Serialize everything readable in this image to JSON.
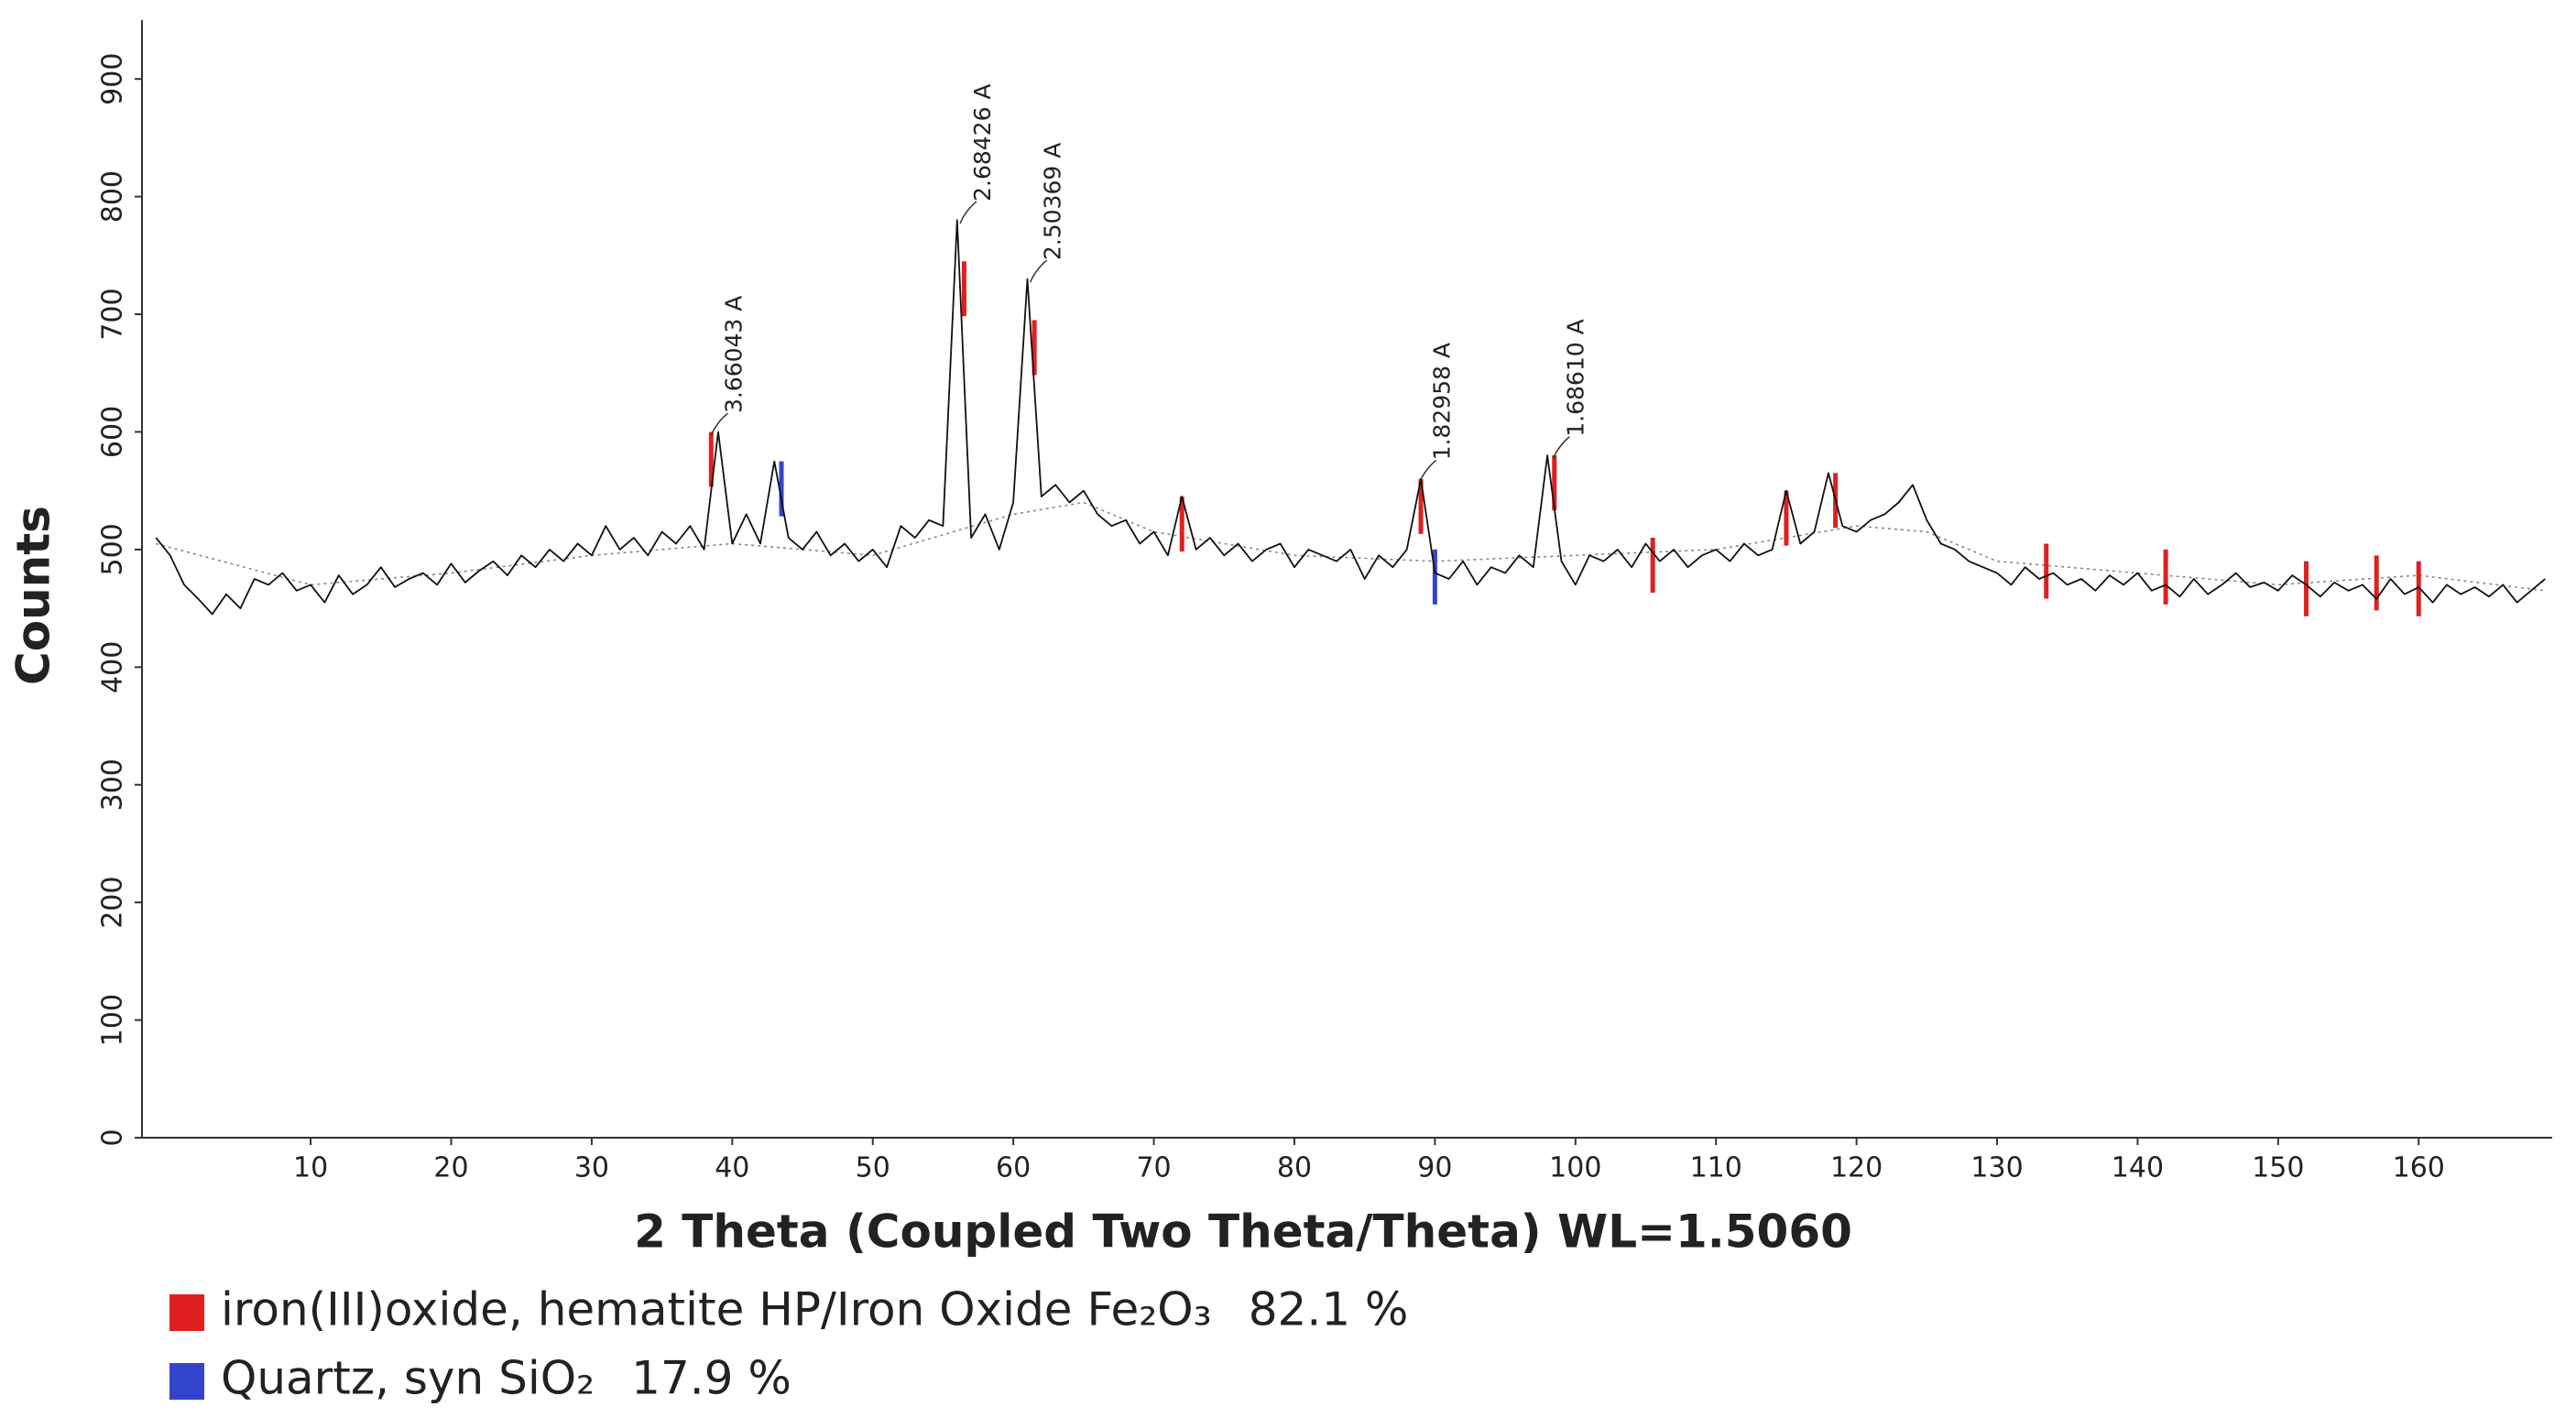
{
  "chart_data": {
    "type": "line",
    "xlabel": "2 Theta (Coupled Two Theta/Theta) WL=1.5060",
    "ylabel": "Counts",
    "xlim": [
      -2,
      169.5
    ],
    "ylim": [
      0,
      950
    ],
    "xticks": [
      10,
      20,
      30,
      40,
      50,
      60,
      70,
      80,
      90,
      100,
      110,
      120,
      130,
      140,
      150,
      160
    ],
    "yticks": [
      0,
      100,
      200,
      300,
      400,
      500,
      600,
      700,
      800,
      900
    ],
    "x": [
      -1,
      0,
      1,
      2,
      3,
      4,
      5,
      6,
      7,
      8,
      9,
      10,
      11,
      12,
      13,
      14,
      15,
      16,
      17,
      18,
      19,
      20,
      21,
      22,
      23,
      24,
      25,
      26,
      27,
      28,
      29,
      30,
      31,
      32,
      33,
      34,
      35,
      36,
      37,
      38,
      39,
      40,
      41,
      42,
      43,
      44,
      45,
      46,
      47,
      48,
      49,
      50,
      51,
      52,
      53,
      54,
      55,
      56,
      57,
      58,
      59,
      60,
      61,
      62,
      63,
      64,
      65,
      66,
      67,
      68,
      69,
      70,
      71,
      72,
      73,
      74,
      75,
      76,
      77,
      78,
      79,
      80,
      81,
      82,
      83,
      84,
      85,
      86,
      87,
      88,
      89,
      90,
      91,
      92,
      93,
      94,
      95,
      96,
      97,
      98,
      99,
      100,
      101,
      102,
      103,
      104,
      105,
      106,
      107,
      108,
      109,
      110,
      111,
      112,
      113,
      114,
      115,
      116,
      117,
      118,
      119,
      120,
      121,
      122,
      123,
      124,
      125,
      126,
      127,
      128,
      129,
      130,
      131,
      132,
      133,
      134,
      135,
      136,
      137,
      138,
      139,
      140,
      141,
      142,
      143,
      144,
      145,
      146,
      147,
      148,
      149,
      150,
      151,
      152,
      153,
      154,
      155,
      156,
      157,
      158,
      159,
      160,
      161,
      162,
      163,
      164,
      165,
      166,
      167,
      168,
      169
    ],
    "values": [
      510,
      495,
      470,
      458,
      445,
      462,
      450,
      475,
      470,
      480,
      465,
      470,
      455,
      478,
      462,
      470,
      485,
      468,
      475,
      480,
      470,
      488,
      472,
      482,
      490,
      478,
      495,
      485,
      500,
      490,
      505,
      495,
      520,
      500,
      510,
      495,
      515,
      505,
      520,
      500,
      600,
      505,
      530,
      505,
      575,
      510,
      500,
      515,
      495,
      505,
      490,
      500,
      485,
      520,
      510,
      525,
      520,
      780,
      510,
      530,
      500,
      540,
      730,
      545,
      555,
      540,
      550,
      530,
      520,
      525,
      505,
      515,
      495,
      545,
      500,
      510,
      495,
      505,
      490,
      500,
      505,
      485,
      500,
      495,
      490,
      500,
      475,
      495,
      485,
      500,
      560,
      480,
      475,
      490,
      470,
      485,
      480,
      495,
      485,
      580,
      490,
      470,
      495,
      490,
      500,
      485,
      505,
      490,
      500,
      485,
      495,
      500,
      490,
      505,
      495,
      500,
      550,
      505,
      515,
      565,
      520,
      515,
      525,
      530,
      540,
      555,
      525,
      505,
      500,
      490,
      485,
      480,
      470,
      485,
      475,
      480,
      470,
      475,
      465,
      478,
      470,
      480,
      465,
      470,
      460,
      475,
      462,
      470,
      480,
      468,
      472,
      465,
      478,
      470,
      460,
      472,
      465,
      470,
      458,
      475,
      462,
      468,
      455,
      470,
      462,
      468,
      460,
      470,
      455,
      465,
      475
    ],
    "background": {
      "x": [
        -1,
        10,
        20,
        30,
        40,
        50,
        60,
        65,
        70,
        80,
        90,
        100,
        110,
        120,
        125,
        130,
        140,
        150,
        160,
        169
      ],
      "values": [
        505,
        470,
        480,
        495,
        505,
        495,
        530,
        540,
        515,
        495,
        490,
        495,
        500,
        520,
        515,
        490,
        480,
        470,
        478,
        465
      ]
    },
    "phases": [
      {
        "name": "iron(III)oxide, hematite HP/Iron Oxide Fe₂O₃",
        "quantity": "82.1 %",
        "color": "#e02020",
        "x": [
          38.5,
          56.5,
          61.5,
          72,
          89,
          98.5,
          105.5,
          115,
          118.5,
          133.5,
          142,
          152,
          157,
          160
        ],
        "values": [
          600,
          745,
          695,
          545,
          560,
          580,
          510,
          550,
          565,
          505,
          500,
          490,
          495,
          490
        ]
      },
      {
        "name": "Quartz, syn SiO₂",
        "quantity": "17.9 %",
        "color": "#3344cc",
        "x": [
          43.5,
          90
        ],
        "values": [
          575,
          500
        ]
      }
    ],
    "annotations": [
      {
        "text": "3.66043 A",
        "x": 38.9,
        "y": 605
      },
      {
        "text": "2.68426 A",
        "x": 56.6,
        "y": 785
      },
      {
        "text": "2.50369 A",
        "x": 61.6,
        "y": 735
      },
      {
        "text": "1.82958 A",
        "x": 89.3,
        "y": 565
      },
      {
        "text": "1.68610 A",
        "x": 98.8,
        "y": 585
      }
    ]
  }
}
